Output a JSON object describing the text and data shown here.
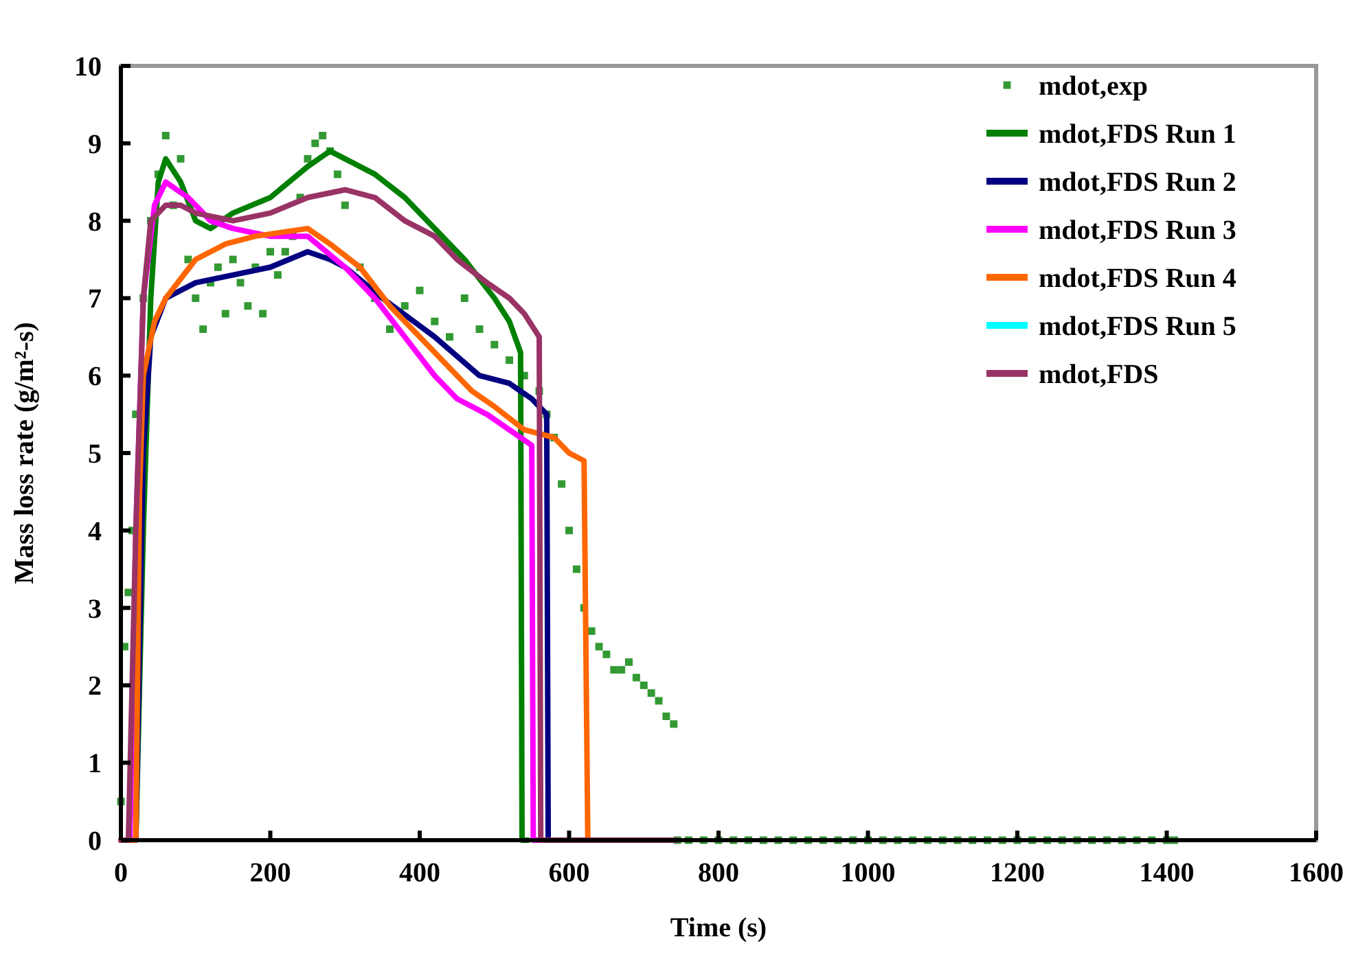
{
  "chart_data": {
    "type": "line",
    "xlabel": "Time (s)",
    "ylabel": "Mass loss rate (g/m²-s)",
    "xlim": [
      0,
      1600
    ],
    "ylim": [
      0,
      10
    ],
    "xticks": [
      0,
      200,
      400,
      600,
      800,
      1000,
      1200,
      1400,
      1600
    ],
    "yticks": [
      0,
      1,
      2,
      3,
      4,
      5,
      6,
      7,
      8,
      9,
      10
    ],
    "grid": false,
    "legend": "top right",
    "line_style": "solid",
    "series": [
      {
        "name": "mdot,exp",
        "type": "scatter",
        "marker": "square",
        "color": "#339933",
        "x": [
          0,
          5,
          10,
          15,
          20,
          30,
          40,
          50,
          60,
          70,
          80,
          90,
          100,
          110,
          120,
          130,
          140,
          150,
          160,
          170,
          180,
          190,
          200,
          210,
          220,
          230,
          240,
          250,
          260,
          270,
          280,
          290,
          300,
          320,
          340,
          360,
          380,
          400,
          420,
          440,
          460,
          480,
          500,
          520,
          540,
          560,
          570,
          580,
          590,
          600,
          610,
          620,
          630,
          640,
          650,
          660,
          670,
          680,
          690,
          700,
          710,
          720,
          730,
          740,
          745,
          760,
          780,
          800,
          820,
          840,
          860,
          880,
          900,
          920,
          940,
          960,
          980,
          1000,
          1020,
          1040,
          1060,
          1080,
          1100,
          1120,
          1140,
          1160,
          1180,
          1200,
          1220,
          1240,
          1260,
          1280,
          1300,
          1320,
          1340,
          1360,
          1380,
          1400,
          1410
        ],
        "values": [
          0.5,
          2.5,
          3.2,
          4,
          5.5,
          7,
          8,
          8.6,
          9.1,
          8.2,
          8.8,
          7.5,
          7,
          6.6,
          7.2,
          7.4,
          6.8,
          7.5,
          7.2,
          6.9,
          7.4,
          6.8,
          7.6,
          7.3,
          7.6,
          7.8,
          8.3,
          8.8,
          9,
          9.1,
          8.9,
          8.6,
          8.2,
          7.4,
          7,
          6.6,
          6.9,
          7.1,
          6.7,
          6.5,
          7,
          6.6,
          6.4,
          6.2,
          6,
          5.8,
          5.5,
          5.2,
          4.6,
          4,
          3.5,
          3,
          2.7,
          2.5,
          2.4,
          2.2,
          2.2,
          2.3,
          2.1,
          2,
          1.9,
          1.8,
          1.6,
          1.5,
          0,
          0,
          0,
          0,
          0,
          0,
          0,
          0,
          0,
          0,
          0,
          0,
          0,
          0,
          0,
          0,
          0,
          0,
          0,
          0,
          0,
          0,
          0,
          0,
          0,
          0,
          0,
          0,
          0,
          0,
          0,
          0,
          0,
          0,
          0
        ]
      },
      {
        "name": "mdot,FDS Run 1",
        "color": "#008000",
        "x": [
          0,
          20,
          30,
          40,
          50,
          60,
          80,
          100,
          120,
          150,
          200,
          250,
          280,
          300,
          340,
          380,
          420,
          460,
          500,
          520,
          535,
          537,
          545
        ],
        "values": [
          0,
          0,
          4,
          7,
          8.5,
          8.8,
          8.5,
          8,
          7.9,
          8.1,
          8.3,
          8.7,
          8.9,
          8.8,
          8.6,
          8.3,
          7.9,
          7.5,
          7,
          6.7,
          6.3,
          0,
          0
        ]
      },
      {
        "name": "mdot,FDS Run 2",
        "color": "#000080",
        "x": [
          0,
          20,
          30,
          40,
          60,
          100,
          150,
          200,
          250,
          280,
          300,
          350,
          420,
          480,
          520,
          550,
          570,
          572,
          580
        ],
        "values": [
          0,
          0,
          5,
          6.5,
          7,
          7.2,
          7.3,
          7.4,
          7.6,
          7.5,
          7.4,
          7,
          6.5,
          6,
          5.9,
          5.7,
          5.5,
          0,
          0
        ]
      },
      {
        "name": "mdot,FDS Run 3",
        "color": "#ff00ff",
        "x": [
          0,
          12,
          20,
          30,
          45,
          60,
          90,
          120,
          150,
          200,
          250,
          300,
          340,
          380,
          420,
          450,
          490,
          520,
          550,
          552,
          560
        ],
        "values": [
          0,
          0,
          4,
          7,
          8.2,
          8.5,
          8.3,
          8,
          7.9,
          7.8,
          7.8,
          7.4,
          7,
          6.5,
          6,
          5.7,
          5.5,
          5.3,
          5.1,
          0,
          0
        ]
      },
      {
        "name": "mdot,FDS Run 4",
        "color": "#ff6600",
        "x": [
          0,
          20,
          25,
          30,
          45,
          60,
          100,
          140,
          180,
          250,
          280,
          320,
          360,
          400,
          440,
          470,
          500,
          540,
          580,
          600,
          620,
          625,
          630
        ],
        "values": [
          0,
          0,
          4.5,
          6,
          6.7,
          7,
          7.5,
          7.7,
          7.8,
          7.9,
          7.7,
          7.4,
          6.9,
          6.5,
          6.1,
          5.8,
          5.6,
          5.3,
          5.2,
          5,
          4.9,
          0,
          0
        ]
      },
      {
        "name": "mdot,FDS Run 5",
        "color": "#00ffff"
      },
      {
        "name": "mdot,FDS",
        "color": "#993366",
        "x": [
          0,
          10,
          20,
          30,
          40,
          60,
          80,
          100,
          150,
          200,
          250,
          300,
          340,
          380,
          420,
          450,
          490,
          520,
          540,
          560,
          562,
          745
        ],
        "values": [
          0,
          0,
          4,
          7,
          8,
          8.2,
          8.2,
          8.1,
          8,
          8.1,
          8.3,
          8.4,
          8.3,
          8,
          7.8,
          7.5,
          7.2,
          7,
          6.8,
          6.5,
          0,
          0
        ]
      }
    ]
  }
}
